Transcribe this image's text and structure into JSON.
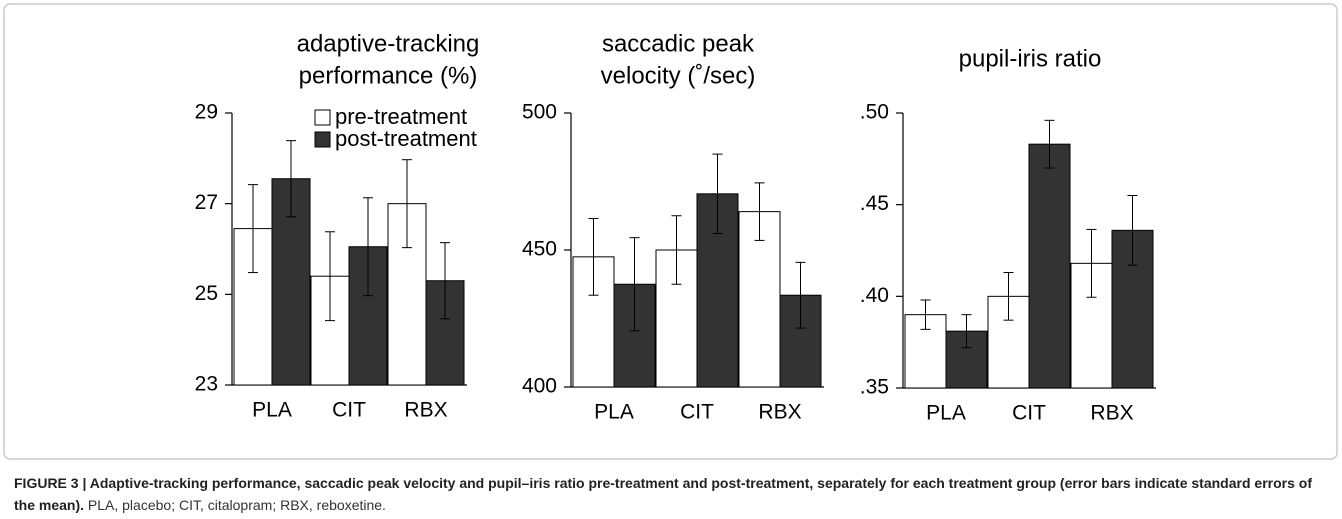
{
  "chart_data": [
    {
      "type": "bar",
      "title": [
        "adaptive-tracking",
        "performance (%)"
      ],
      "categories": [
        "PLA",
        "CIT",
        "RBX"
      ],
      "series": [
        {
          "name": "pre-treatment",
          "color": "#ffffff",
          "values": [
            26.45,
            25.4,
            27.0
          ],
          "errors": [
            0.97,
            0.98,
            0.97
          ]
        },
        {
          "name": "post-treatment",
          "color": "#333333",
          "values": [
            27.55,
            26.05,
            25.3
          ],
          "errors": [
            0.84,
            1.08,
            0.84
          ]
        }
      ],
      "ylim": [
        23,
        29
      ],
      "yticks": [
        23,
        25,
        27,
        29
      ]
    },
    {
      "type": "bar",
      "title": [
        "saccadic peak",
        "velocity (˚/sec)"
      ],
      "categories": [
        "PLA",
        "CIT",
        "RBX"
      ],
      "series": [
        {
          "color": "#ffffff",
          "values": [
            447.5,
            450,
            464
          ],
          "errors": [
            14,
            12.5,
            10.5
          ]
        },
        {
          "color": "#333333",
          "values": [
            437.5,
            470.5,
            433.5
          ],
          "errors": [
            17,
            14.5,
            12
          ]
        }
      ],
      "ylim": [
        400,
        500
      ],
      "yticks": [
        400,
        450,
        500
      ]
    },
    {
      "type": "bar",
      "title": [
        "pupil-iris ratio"
      ],
      "categories": [
        "PLA",
        "CIT",
        "RBX"
      ],
      "series": [
        {
          "color": "#ffffff",
          "values": [
            0.39,
            0.4,
            0.418
          ],
          "errors": [
            0.008,
            0.013,
            0.0185
          ]
        },
        {
          "color": "#333333",
          "values": [
            0.381,
            0.483,
            0.436
          ],
          "errors": [
            0.009,
            0.013,
            0.019
          ]
        }
      ],
      "ylim": [
        0.35,
        0.5
      ],
      "yticks": [
        {
          "value": 0.35,
          "label": ".35"
        },
        {
          "value": 0.4,
          "label": ".40"
        },
        {
          "value": 0.45,
          "label": ".45"
        },
        {
          "value": 0.5,
          "label": ".50"
        }
      ]
    }
  ],
  "caption": {
    "bold": "FIGURE 3 | Adaptive-tracking performance, saccadic peak velocity and pupil–iris ratio pre-treatment and post-treatment, separately for each treatment group (error bars indicate standard errors of the mean).",
    "text": "PLA, placebo; CIT, citalopram; RBX, reboxetine."
  }
}
